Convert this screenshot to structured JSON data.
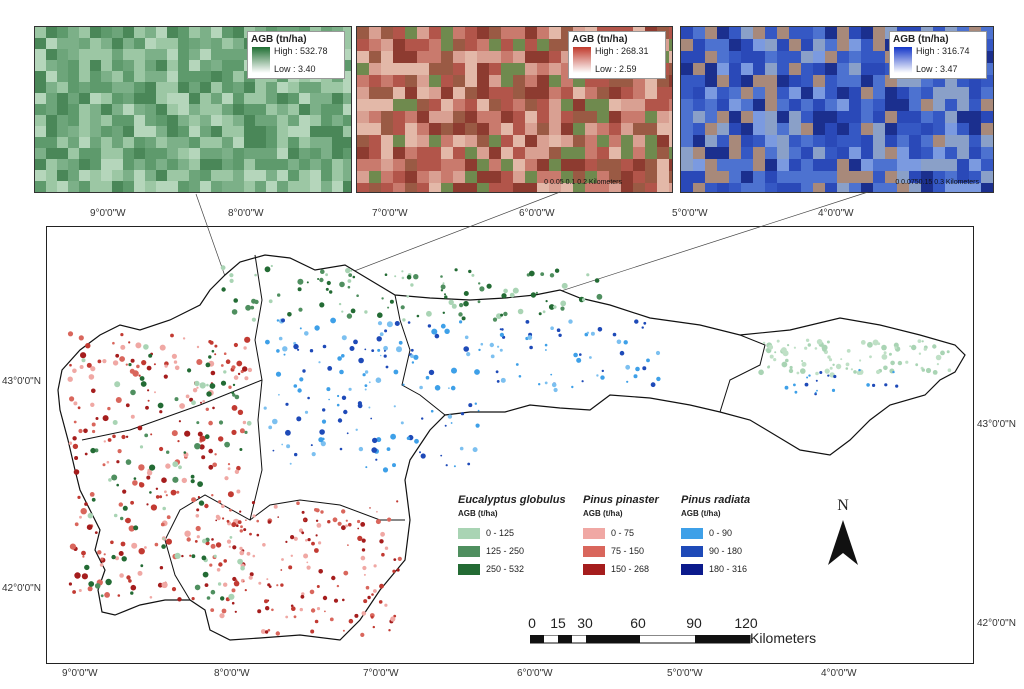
{
  "insets": [
    {
      "title": "AGB (tn/ha)",
      "high": "High : 532.78",
      "low": "Low : 3.40",
      "ramp": [
        "#1f6e32",
        "#ffffff"
      ],
      "scale": ""
    },
    {
      "title": "AGB (tn/ha)",
      "high": "High : 268.31",
      "low": "Low : 2.59",
      "ramp": [
        "#c0392b",
        "#ffffff"
      ],
      "scale": "0  0.05 0.1     0.2 Kilometers"
    },
    {
      "title": "AGB (tn/ha)",
      "high": "High : 316.74",
      "low": "Low : 3.47",
      "ramp": [
        "#1336c8",
        "#ffffff"
      ],
      "scale": "0  0.0750.15    0.3 Kilometers"
    }
  ],
  "lon_labels": [
    "9°0'0\"W",
    "8°0'0\"W",
    "7°0'0\"W",
    "6°0'0\"W",
    "5°0'0\"W",
    "4°0'0\"W"
  ],
  "lat_labels": [
    "43°0'0\"N",
    "42°0'0\"N"
  ],
  "legend": [
    {
      "species": "Eucalyptus globulus",
      "unit": "AGB (t/ha)",
      "classes": [
        {
          "label": "0 - 125",
          "color": "#a9d4b4"
        },
        {
          "label": "125 - 250",
          "color": "#4f8f5f"
        },
        {
          "label": "250 - 532",
          "color": "#236b34"
        }
      ]
    },
    {
      "species": "Pinus pinaster",
      "unit": "AGB (t/ha)",
      "classes": [
        {
          "label": "0 - 75",
          "color": "#f0a8a4"
        },
        {
          "label": "75 - 150",
          "color": "#d9665c"
        },
        {
          "label": "150 - 268",
          "color": "#a51d1d"
        }
      ]
    },
    {
      "species": "Pinus radiata",
      "unit": "AGB (t/ha)",
      "classes": [
        {
          "label": "0 - 90",
          "color": "#3ea0e8"
        },
        {
          "label": "90 - 180",
          "color": "#1e4ab8"
        },
        {
          "label": "180 - 316",
          "color": "#0b1a8c"
        }
      ]
    }
  ],
  "north_label": "N",
  "scalebar": {
    "ticks": [
      "0",
      "15",
      "30",
      "60",
      "90",
      "120"
    ],
    "unit": "Kilometers"
  }
}
